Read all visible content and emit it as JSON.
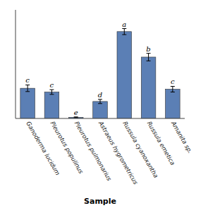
{
  "chart_data": {
    "type": "bar",
    "xlabel": "Sample",
    "categories": [
      "Ganoderma lucidum",
      "Pleurotus populinus",
      "Pleurotus pulmonarius",
      "Astraeus hygrometricus",
      "Russula cyanoxantha",
      "Russula emetica",
      "Amanita sp."
    ],
    "values": [
      3.2,
      2.8,
      0.12,
      1.8,
      9.2,
      6.5,
      3.1
    ],
    "errors": [
      0.35,
      0.25,
      0.04,
      0.22,
      0.32,
      0.4,
      0.3
    ],
    "letters": [
      "c",
      "c",
      "e",
      "d",
      "a",
      "b",
      "c"
    ],
    "color": "#5B7FB5",
    "ylim": [
      0,
      11.5
    ],
    "yticks": [],
    "tick_labels": "x"
  }
}
